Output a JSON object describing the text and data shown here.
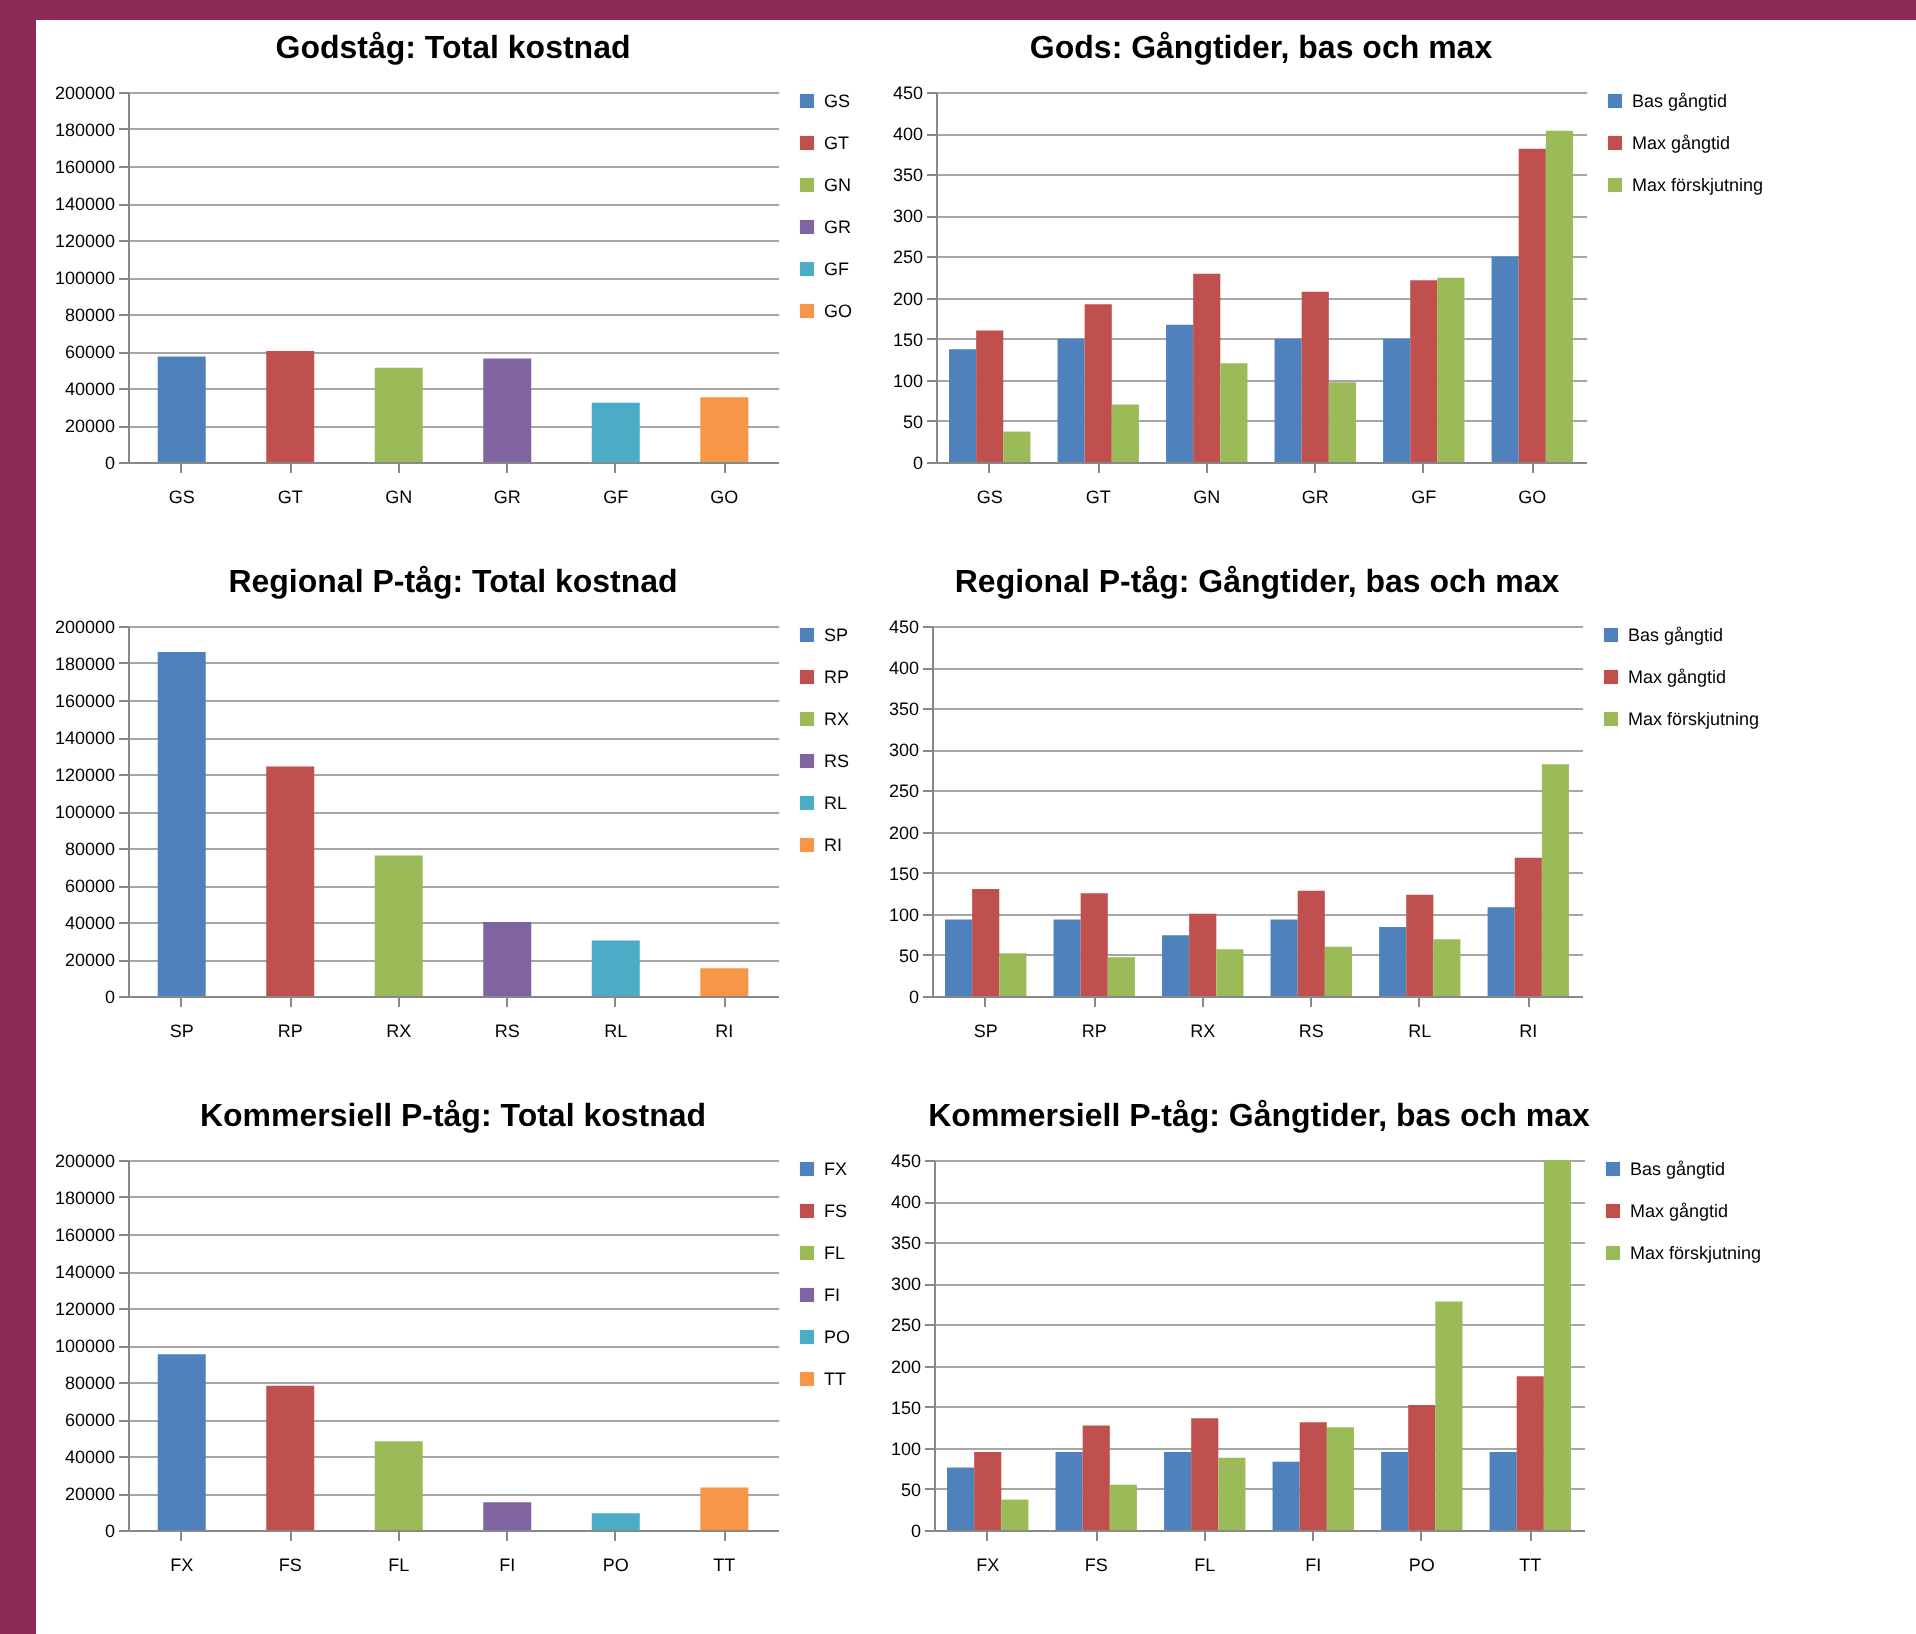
{
  "chart_data": [
    {
      "type": "bar",
      "title": "Godståg: Total kostnad",
      "categories": [
        "GS",
        "GT",
        "GN",
        "GR",
        "GF",
        "GO"
      ],
      "stacked": true,
      "series": [
        {
          "name": "GS",
          "color": "#4f81bd",
          "values": [
            57000,
            null,
            null,
            null,
            null,
            null
          ]
        },
        {
          "name": "GT",
          "color": "#c0504d",
          "values": [
            null,
            60000,
            null,
            null,
            null,
            null
          ]
        },
        {
          "name": "GN",
          "color": "#9bbb59",
          "values": [
            null,
            null,
            51000,
            null,
            null,
            null
          ]
        },
        {
          "name": "GR",
          "color": "#8064a2",
          "values": [
            null,
            null,
            null,
            56000,
            null,
            null
          ]
        },
        {
          "name": "GF",
          "color": "#4bacc6",
          "values": [
            null,
            null,
            null,
            null,
            32000,
            null
          ]
        },
        {
          "name": "GO",
          "color": "#f79646",
          "values": [
            null,
            null,
            null,
            null,
            null,
            35000
          ]
        }
      ],
      "ylim": [
        0,
        200000
      ],
      "yticks": [
        0,
        20000,
        40000,
        60000,
        80000,
        100000,
        120000,
        140000,
        160000,
        180000,
        200000
      ],
      "grid": "y",
      "legend": "right"
    },
    {
      "type": "bar",
      "title": "Gods: Gångtider, bas och max",
      "categories": [
        "GS",
        "GT",
        "GN",
        "GR",
        "GF",
        "GO"
      ],
      "series": [
        {
          "name": "Bas gångtid",
          "color": "#4f81bd",
          "values": [
            137,
            150,
            167,
            150,
            150,
            250
          ]
        },
        {
          "name": "Max gångtid",
          "color": "#c0504d",
          "values": [
            160,
            192,
            229,
            207,
            221,
            381
          ]
        },
        {
          "name": "Max förskjutning",
          "color": "#9bbb59",
          "values": [
            37,
            70,
            120,
            97,
            224,
            403
          ]
        }
      ],
      "ylim": [
        0,
        450
      ],
      "yticks": [
        0,
        50,
        100,
        150,
        200,
        250,
        300,
        350,
        400,
        450
      ],
      "grid": "y",
      "legend": "right"
    },
    {
      "type": "bar",
      "title": "Regional P-tåg: Total kostnad",
      "categories": [
        "SP",
        "RP",
        "RX",
        "RS",
        "RL",
        "RI"
      ],
      "stacked": true,
      "series": [
        {
          "name": "SP",
          "color": "#4f81bd",
          "values": [
            186000,
            null,
            null,
            null,
            null,
            null
          ]
        },
        {
          "name": "RP",
          "color": "#c0504d",
          "values": [
            null,
            124000,
            null,
            null,
            null,
            null
          ]
        },
        {
          "name": "RX",
          "color": "#9bbb59",
          "values": [
            null,
            null,
            76000,
            null,
            null,
            null
          ]
        },
        {
          "name": "RS",
          "color": "#8064a2",
          "values": [
            null,
            null,
            null,
            40000,
            null,
            null
          ]
        },
        {
          "name": "RL",
          "color": "#4bacc6",
          "values": [
            null,
            null,
            null,
            null,
            30000,
            null
          ]
        },
        {
          "name": "RI",
          "color": "#f79646",
          "values": [
            null,
            null,
            null,
            null,
            null,
            15000
          ]
        }
      ],
      "ylim": [
        0,
        200000
      ],
      "yticks": [
        0,
        20000,
        40000,
        60000,
        80000,
        100000,
        120000,
        140000,
        160000,
        180000,
        200000
      ],
      "grid": "y",
      "legend": "right"
    },
    {
      "type": "bar",
      "title": "Regional P-tåg: Gångtider, bas och max",
      "categories": [
        "SP",
        "RP",
        "RX",
        "RS",
        "RL",
        "RI"
      ],
      "series": [
        {
          "name": "Bas gångtid",
          "color": "#4f81bd",
          "values": [
            93,
            93,
            74,
            93,
            84,
            108
          ]
        },
        {
          "name": "Max gångtid",
          "color": "#c0504d",
          "values": [
            130,
            125,
            100,
            128,
            123,
            168
          ]
        },
        {
          "name": "Max förskjutning",
          "color": "#9bbb59",
          "values": [
            52,
            47,
            57,
            60,
            69,
            282
          ]
        }
      ],
      "ylim": [
        0,
        450
      ],
      "yticks": [
        0,
        50,
        100,
        150,
        200,
        250,
        300,
        350,
        400,
        450
      ],
      "grid": "y",
      "legend": "right"
    },
    {
      "type": "bar",
      "title": "Kommersiell P-tåg: Total kostnad",
      "categories": [
        "FX",
        "FS",
        "FL",
        "FI",
        "PO",
        "TT"
      ],
      "stacked": true,
      "series": [
        {
          "name": "FX",
          "color": "#4f81bd",
          "values": [
            95000,
            null,
            null,
            null,
            null,
            null
          ]
        },
        {
          "name": "FS",
          "color": "#c0504d",
          "values": [
            null,
            78000,
            null,
            null,
            null,
            null
          ]
        },
        {
          "name": "FL",
          "color": "#9bbb59",
          "values": [
            null,
            null,
            48000,
            null,
            null,
            null
          ]
        },
        {
          "name": "FI",
          "color": "#8064a2",
          "values": [
            null,
            null,
            null,
            15000,
            null,
            null
          ]
        },
        {
          "name": "PO",
          "color": "#4bacc6",
          "values": [
            null,
            null,
            null,
            null,
            9000,
            null
          ]
        },
        {
          "name": "TT",
          "color": "#f79646",
          "values": [
            null,
            null,
            null,
            null,
            null,
            23000
          ]
        }
      ],
      "ylim": [
        0,
        200000
      ],
      "yticks": [
        0,
        20000,
        40000,
        60000,
        80000,
        100000,
        120000,
        140000,
        160000,
        180000,
        200000
      ],
      "grid": "y",
      "legend": "right"
    },
    {
      "type": "bar",
      "title": "Kommersiell P-tåg: Gångtider, bas och max",
      "categories": [
        "FX",
        "FS",
        "FL",
        "FI",
        "PO",
        "TT"
      ],
      "series": [
        {
          "name": "Bas gångtid",
          "color": "#4f81bd",
          "values": [
            76,
            95,
            95,
            83,
            95,
            95
          ]
        },
        {
          "name": "Max gångtid",
          "color": "#c0504d",
          "values": [
            95,
            127,
            136,
            131,
            152,
            187
          ]
        },
        {
          "name": "Max förskjutning",
          "color": "#9bbb59",
          "values": [
            37,
            55,
            88,
            125,
            278,
            450
          ]
        }
      ],
      "ylim": [
        0,
        450
      ],
      "yticks": [
        0,
        50,
        100,
        150,
        200,
        250,
        300,
        350,
        400,
        450
      ],
      "grid": "y",
      "legend": "right"
    }
  ]
}
